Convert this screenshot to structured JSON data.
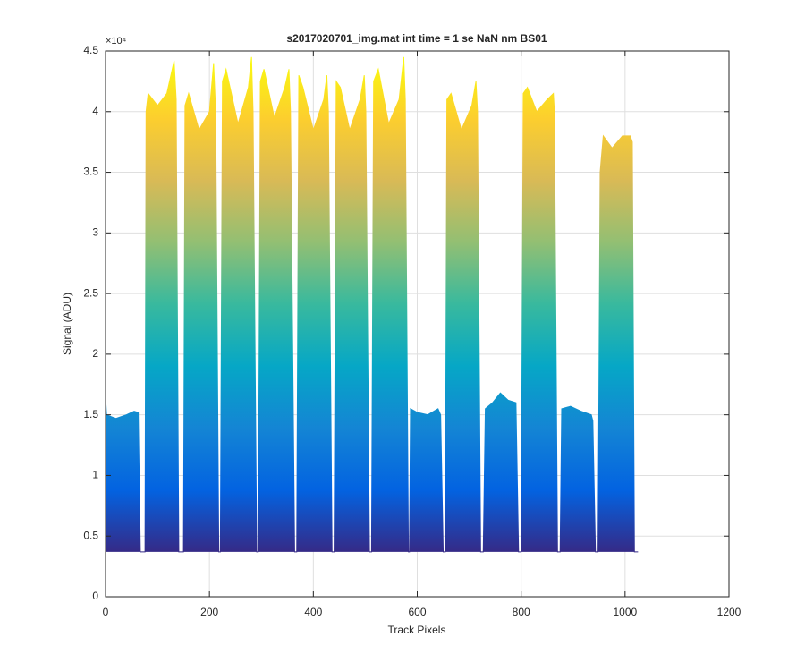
{
  "chart_data": {
    "type": "area",
    "title": "s2017020701_img.mat int time = 1 se  NaN nm BS01",
    "x_label": "Track Pixels",
    "y_label": "Signal (ADU)",
    "y_exponent_label": "×10⁴",
    "colormap": "parula",
    "grid": true,
    "xlim": [
      0,
      1200
    ],
    "xticks": [
      0,
      200,
      400,
      600,
      800,
      1000,
      1200
    ],
    "ylim": [
      0,
      45000
    ],
    "yticks": [
      0,
      {
        "value": 5000,
        "label": "0.5"
      },
      {
        "value": 10000,
        "label": "1"
      },
      {
        "value": 15000,
        "label": "1.5"
      },
      {
        "value": 20000,
        "label": "2"
      },
      {
        "value": 25000,
        "label": "2.5"
      },
      {
        "value": 30000,
        "label": "3"
      },
      {
        "value": 35000,
        "label": "3.5"
      },
      {
        "value": 40000,
        "label": "4"
      },
      {
        "value": 45000,
        "label": "4.5"
      }
    ],
    "x": [
      0,
      2,
      20,
      40,
      55,
      63,
      67,
      76,
      78,
      82,
      100,
      118,
      132,
      136,
      141,
      150,
      153,
      160,
      180,
      200,
      208,
      212,
      218,
      221,
      225,
      232,
      255,
      275,
      281,
      284,
      291,
      294,
      298,
      305,
      325,
      345,
      353,
      356,
      364,
      368,
      372,
      380,
      400,
      420,
      426,
      429,
      436,
      440,
      444,
      452,
      470,
      490,
      498,
      501,
      508,
      512,
      516,
      525,
      545,
      565,
      574,
      577,
      583,
      585,
      587,
      600,
      620,
      640,
      645,
      650,
      654,
      657,
      665,
      685,
      705,
      713,
      716,
      722,
      727,
      731,
      745,
      760,
      775,
      790,
      795,
      800,
      804,
      812,
      830,
      850,
      862,
      864,
      870,
      875,
      878,
      895,
      915,
      935,
      938,
      943,
      948,
      952,
      958,
      975,
      995,
      1010,
      1014,
      1018,
      1025
    ],
    "values": [
      16500,
      15000,
      14700,
      15000,
      15300,
      15200,
      3700,
      3700,
      40000,
      41500,
      40500,
      41500,
      44200,
      41000,
      3700,
      3700,
      40500,
      41500,
      38500,
      40000,
      44000,
      40000,
      3700,
      3700,
      42500,
      43500,
      39000,
      42000,
      44500,
      40000,
      3700,
      3700,
      42500,
      43500,
      39500,
      42000,
      43500,
      40000,
      3700,
      3700,
      43000,
      42000,
      38500,
      41000,
      43000,
      40000,
      3700,
      3700,
      42500,
      42000,
      38500,
      41000,
      43000,
      40000,
      3700,
      3700,
      42500,
      43500,
      39000,
      41000,
      44500,
      41000,
      3700,
      3700,
      15500,
      15200,
      15000,
      15500,
      15000,
      3700,
      3700,
      41000,
      41500,
      38500,
      40500,
      42500,
      40000,
      3700,
      3700,
      15500,
      16000,
      16800,
      16200,
      16000,
      3700,
      3700,
      41500,
      42000,
      40000,
      41000,
      41500,
      40000,
      3700,
      3700,
      15500,
      15700,
      15300,
      15000,
      14500,
      3700,
      3700,
      35000,
      38000,
      37000,
      38000,
      38000,
      37500,
      3700,
      3700
    ]
  }
}
